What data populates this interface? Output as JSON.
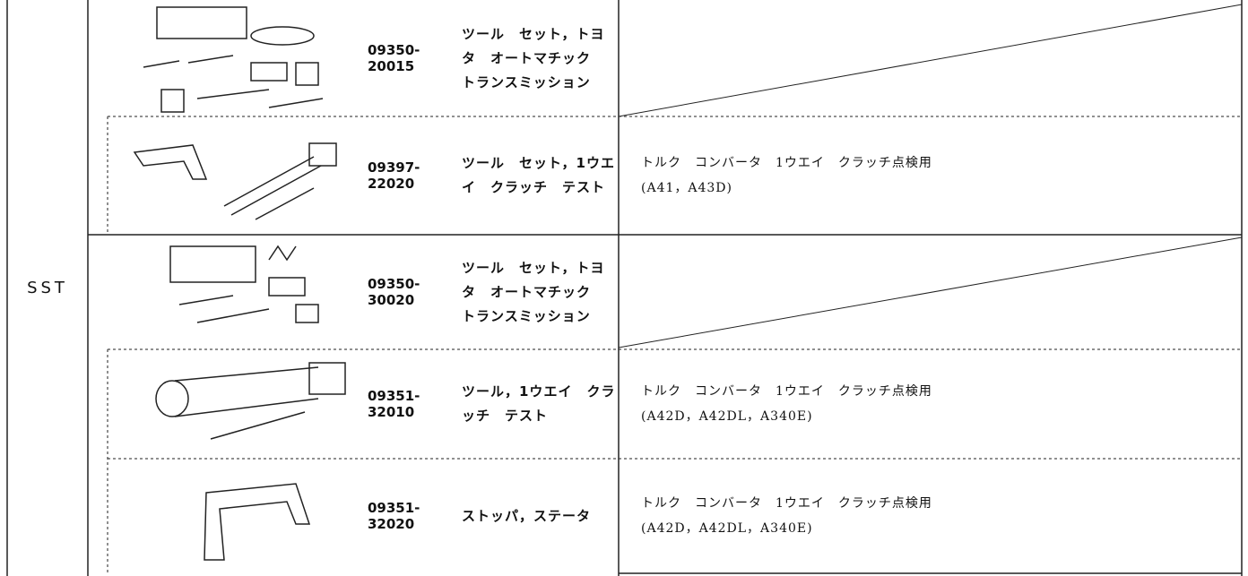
{
  "table": {
    "category": "SST",
    "rows": [
      {
        "part_number": "09350-20015",
        "name": "ツール　セット，トヨタ　オートマチック　トランスミッション"
      },
      {
        "part_number": "09397-22020",
        "name": "ツール　セット，1ウエイ　クラッチ　テスト",
        "usage": [
          "トルク　コンバータ　1ウエイ　クラッチ点検用",
          "(A41，A43D)"
        ]
      },
      {
        "part_number": "09350-30020",
        "name": "ツール　セット，トヨタ　オートマチック　トランスミッション"
      },
      {
        "part_number": "09351-32010",
        "name": "ツール，1ウエイ　クラッチ　テスト",
        "usage": [
          "トルク　コンバータ　1ウエイ　クラッチ点検用",
          "(A42D，A42DL，A340E)"
        ]
      },
      {
        "part_number": "09351-32020",
        "name": "ストッパ，ステータ",
        "usage": [
          "トルク　コンバータ　1ウエイ　クラッチ点検用",
          "(A42D，A42DL，A340E)"
        ]
      }
    ]
  }
}
